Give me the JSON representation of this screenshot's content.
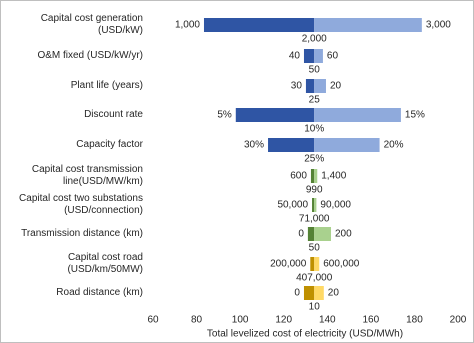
{
  "chart_data": {
    "type": "tornado",
    "xlabel": "Total levelized cost of electricity (USD/MWh)",
    "xlim": [
      60,
      200
    ],
    "xticks": [
      60,
      80,
      100,
      120,
      140,
      160,
      180,
      200
    ],
    "base": 134,
    "rows": [
      {
        "category": "Capital cost generation (USD/kW)",
        "low": 83.4,
        "high": 183.4,
        "low_label": "1,000",
        "high_label": "3,000",
        "base_label": "2,000",
        "color_low": "#2f55a4",
        "color_high": "#8faadc"
      },
      {
        "category": "O&M fixed (USD/kW/yr)",
        "low": 129.3,
        "high": 138,
        "low_label": "40",
        "high_label": "60",
        "base_label": "50",
        "color_low": "#2f55a4",
        "color_high": "#8faadc"
      },
      {
        "category": "Plant life (years)",
        "low": 130.2,
        "high": 139.4,
        "low_label": "30",
        "high_label": "20",
        "base_label": "25",
        "color_low": "#2f55a4",
        "color_high": "#8faadc"
      },
      {
        "category": "Discount rate",
        "low": 98,
        "high": 173.8,
        "low_label": "5%",
        "high_label": "15%",
        "base_label": "10%",
        "color_low": "#2f55a4",
        "color_high": "#8faadc"
      },
      {
        "category": "Capacity factor",
        "low": 112.8,
        "high": 164,
        "low_label": "30%",
        "high_label": "20%",
        "base_label": "25%",
        "color_low": "#2f55a4",
        "color_high": "#8faadc"
      },
      {
        "category": "Capital cost transmission\nline(USD/MW/km)",
        "low": 132.5,
        "high": 135.4,
        "low_label": "600",
        "high_label": "1,400",
        "base_label": "990",
        "color_low": "#548235",
        "color_high": "#a9d18e"
      },
      {
        "category": "Capital cost two substations\n(USD/connection)",
        "low": 133,
        "high": 135,
        "low_label": "50,000",
        "high_label": "90,000",
        "base_label": "71,000",
        "color_low": "#548235",
        "color_high": "#a9d18e"
      },
      {
        "category": "Transmission distance (km)",
        "low": 131.1,
        "high": 141.7,
        "low_label": "0",
        "high_label": "200",
        "base_label": "50",
        "color_low": "#548235",
        "color_high": "#a9d18e"
      },
      {
        "category": "Capital cost road\n(USD/km/50MW)",
        "low": 132.2,
        "high": 136.3,
        "low_label": "200,000",
        "high_label": "600,000",
        "base_label": "407,000",
        "color_low": "#bf9000",
        "color_high": "#ffd966"
      },
      {
        "category": "Road distance (km)",
        "low": 129.3,
        "high": 138.4,
        "low_label": "0",
        "high_label": "20",
        "base_label": "10",
        "color_low": "#bf9000",
        "color_high": "#ffd966"
      }
    ]
  }
}
